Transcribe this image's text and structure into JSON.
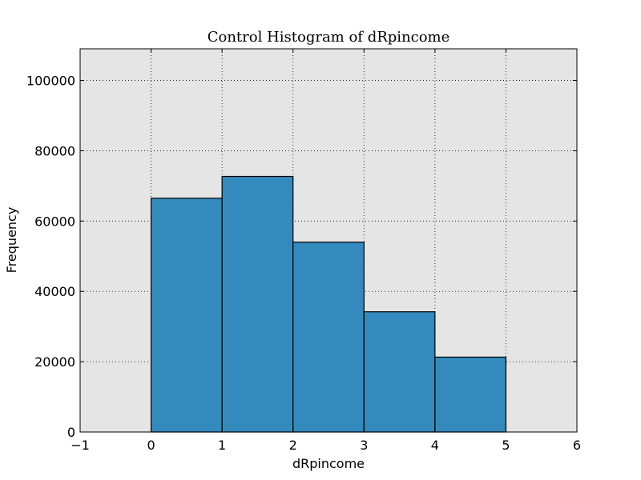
{
  "chart_data": {
    "type": "bar",
    "title": "Control Histogram of dRpincome",
    "xlabel": "dRpincome",
    "ylabel": "Frequency",
    "xlim": [
      -1,
      6
    ],
    "ylim": [
      0,
      109000
    ],
    "xticks": [
      -1,
      0,
      1,
      2,
      3,
      4,
      5,
      6
    ],
    "xtick_labels": [
      "−1",
      "0",
      "1",
      "2",
      "3",
      "4",
      "5",
      "6"
    ],
    "yticks": [
      0,
      20000,
      40000,
      60000,
      80000,
      100000
    ],
    "ytick_labels": [
      "0",
      "20000",
      "40000",
      "60000",
      "80000",
      "100000"
    ],
    "bins": [
      [
        0,
        1
      ],
      [
        1,
        2
      ],
      [
        2,
        3
      ],
      [
        3,
        4
      ],
      [
        4,
        5
      ]
    ],
    "categories": [
      "0-1",
      "1-2",
      "2-3",
      "3-4",
      "4-5"
    ],
    "values": [
      66500,
      72700,
      54000,
      34200,
      21300
    ],
    "grid": true,
    "colors": {
      "bar": "#348abd",
      "plot_bg": "#e5e5e5"
    }
  }
}
